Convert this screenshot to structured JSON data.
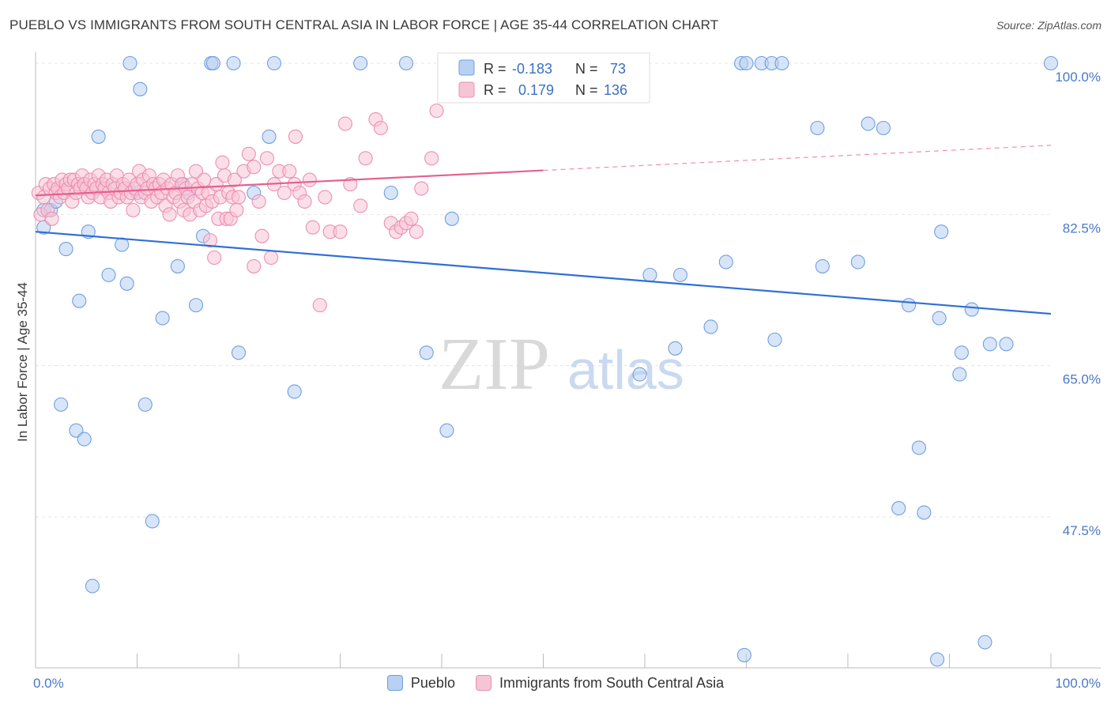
{
  "header": {
    "title": "PUEBLO VS IMMIGRANTS FROM SOUTH CENTRAL ASIA IN LABOR FORCE | AGE 35-44 CORRELATION CHART",
    "source": "Source: ZipAtlas.com"
  },
  "watermark": {
    "part1": "ZIP",
    "part2": "atlas"
  },
  "chart_data": {
    "type": "scatter",
    "title": "PUEBLO VS IMMIGRANTS FROM SOUTH CENTRAL ASIA IN LABOR FORCE | AGE 35-44 CORRELATION CHART",
    "xlabel": "",
    "ylabel": "In Labor Force | Age 35-44",
    "xlim": [
      0,
      100
    ],
    "ylim": [
      29,
      101
    ],
    "x_tick_labels": {
      "left": "0.0%",
      "right": "100.0%"
    },
    "y_ticks": [
      {
        "value": 100.0,
        "label": "100.0%"
      },
      {
        "value": 82.5,
        "label": "82.5%"
      },
      {
        "value": 65.0,
        "label": "65.0%"
      },
      {
        "value": 47.5,
        "label": "47.5%"
      }
    ],
    "grid": true,
    "legend_position": "top-center",
    "stats": [
      {
        "r_label": "R = ",
        "r": "-0.183",
        "n_label": "N = ",
        "n": "73"
      },
      {
        "r_label": "R = ",
        "r": "0.179",
        "n_label": "N = ",
        "n": "136"
      }
    ],
    "series": [
      {
        "name": "Pueblo",
        "color": "#6f9fe0",
        "fill": "#b8d0f2",
        "trend": {
          "x0": 0,
          "y0": 80.5,
          "x1": 100,
          "y1": 71.0,
          "style": "solid"
        },
        "points": [
          [
            0.8,
            83.0
          ],
          [
            0.8,
            81.0
          ],
          [
            1.5,
            83.0
          ],
          [
            2.0,
            84.0
          ],
          [
            2.5,
            60.5
          ],
          [
            3.0,
            78.5
          ],
          [
            4.0,
            57.5
          ],
          [
            4.3,
            72.5
          ],
          [
            4.8,
            56.5
          ],
          [
            5.2,
            80.5
          ],
          [
            5.6,
            39.5
          ],
          [
            6.2,
            91.5
          ],
          [
            7.2,
            75.5
          ],
          [
            8.5,
            79.0
          ],
          [
            9.0,
            74.5
          ],
          [
            9.3,
            100.0
          ],
          [
            10.0,
            85.0
          ],
          [
            10.3,
            97.0
          ],
          [
            10.8,
            60.5
          ],
          [
            11.5,
            47.0
          ],
          [
            12.5,
            70.5
          ],
          [
            14.0,
            76.5
          ],
          [
            14.5,
            86.0
          ],
          [
            15.0,
            85.0
          ],
          [
            15.8,
            72.0
          ],
          [
            16.5,
            80.0
          ],
          [
            17.3,
            100.0
          ],
          [
            17.5,
            100.0
          ],
          [
            19.5,
            100.0
          ],
          [
            20.0,
            66.5
          ],
          [
            21.5,
            85.0
          ],
          [
            23.0,
            91.5
          ],
          [
            23.5,
            100.0
          ],
          [
            25.5,
            62.0
          ],
          [
            32.0,
            100.0
          ],
          [
            35.0,
            85.0
          ],
          [
            36.5,
            100.0
          ],
          [
            38.5,
            66.5
          ],
          [
            40.5,
            57.5
          ],
          [
            41.0,
            82.0
          ],
          [
            59.5,
            64.0
          ],
          [
            60.5,
            75.5
          ],
          [
            63.0,
            67.0
          ],
          [
            63.5,
            75.5
          ],
          [
            66.5,
            69.5
          ],
          [
            68.0,
            77.0
          ],
          [
            69.5,
            100.0
          ],
          [
            69.8,
            31.5
          ],
          [
            70.0,
            100.0
          ],
          [
            71.5,
            100.0
          ],
          [
            72.5,
            100.0
          ],
          [
            72.8,
            68.0
          ],
          [
            73.5,
            100.0
          ],
          [
            77.0,
            92.5
          ],
          [
            77.5,
            76.5
          ],
          [
            81.0,
            77.0
          ],
          [
            82.0,
            93.0
          ],
          [
            83.5,
            92.5
          ],
          [
            85.0,
            48.5
          ],
          [
            86.0,
            72.0
          ],
          [
            87.0,
            55.5
          ],
          [
            87.5,
            48.0
          ],
          [
            88.8,
            31.0
          ],
          [
            89.0,
            70.5
          ],
          [
            89.2,
            80.5
          ],
          [
            91.0,
            64.0
          ],
          [
            91.2,
            66.5
          ],
          [
            92.2,
            71.5
          ],
          [
            93.5,
            33.0
          ],
          [
            94.0,
            67.5
          ],
          [
            95.6,
            67.5
          ],
          [
            100.0,
            100.0
          ]
        ]
      },
      {
        "name": "Immigrants from South Central Asia",
        "color": "#ec8fb0",
        "fill": "#f7c4d5",
        "trend": {
          "x0": 0,
          "y0": 84.7,
          "x1": 100,
          "y1": 90.5,
          "solid_until": 50,
          "style": "solid-then-dashed"
        },
        "points": [
          [
            0.3,
            85.0
          ],
          [
            0.5,
            82.5
          ],
          [
            0.8,
            84.5
          ],
          [
            1.0,
            86.0
          ],
          [
            1.2,
            83.0
          ],
          [
            1.4,
            85.5
          ],
          [
            1.6,
            82.0
          ],
          [
            1.8,
            86.0
          ],
          [
            2.0,
            85.0
          ],
          [
            2.2,
            85.5
          ],
          [
            2.4,
            84.5
          ],
          [
            2.6,
            86.5
          ],
          [
            2.8,
            85.0
          ],
          [
            3.0,
            86.0
          ],
          [
            3.2,
            85.5
          ],
          [
            3.4,
            86.5
          ],
          [
            3.6,
            84.0
          ],
          [
            3.8,
            86.5
          ],
          [
            4.0,
            85.0
          ],
          [
            4.2,
            86.0
          ],
          [
            4.4,
            85.5
          ],
          [
            4.6,
            87.0
          ],
          [
            4.8,
            86.0
          ],
          [
            5.0,
            85.5
          ],
          [
            5.2,
            84.5
          ],
          [
            5.4,
            86.5
          ],
          [
            5.6,
            85.0
          ],
          [
            5.8,
            86.0
          ],
          [
            6.0,
            85.5
          ],
          [
            6.2,
            87.0
          ],
          [
            6.4,
            84.5
          ],
          [
            6.6,
            86.0
          ],
          [
            6.8,
            85.5
          ],
          [
            7.0,
            86.5
          ],
          [
            7.2,
            85.0
          ],
          [
            7.4,
            84.0
          ],
          [
            7.6,
            86.0
          ],
          [
            7.8,
            85.5
          ],
          [
            8.0,
            87.0
          ],
          [
            8.2,
            84.5
          ],
          [
            8.4,
            85.0
          ],
          [
            8.6,
            86.0
          ],
          [
            8.8,
            85.5
          ],
          [
            9.0,
            84.5
          ],
          [
            9.2,
            86.5
          ],
          [
            9.4,
            85.0
          ],
          [
            9.6,
            83.0
          ],
          [
            9.8,
            85.5
          ],
          [
            10.0,
            86.0
          ],
          [
            10.2,
            87.5
          ],
          [
            10.4,
            84.5
          ],
          [
            10.6,
            86.5
          ],
          [
            10.8,
            85.0
          ],
          [
            11.0,
            85.5
          ],
          [
            11.2,
            87.0
          ],
          [
            11.4,
            84.0
          ],
          [
            11.6,
            86.0
          ],
          [
            11.8,
            85.5
          ],
          [
            12.0,
            84.5
          ],
          [
            12.2,
            86.0
          ],
          [
            12.4,
            85.0
          ],
          [
            12.6,
            86.5
          ],
          [
            12.8,
            83.5
          ],
          [
            13.0,
            85.5
          ],
          [
            13.2,
            82.5
          ],
          [
            13.4,
            86.0
          ],
          [
            13.6,
            84.5
          ],
          [
            13.8,
            85.0
          ],
          [
            14.0,
            87.0
          ],
          [
            14.2,
            84.0
          ],
          [
            14.4,
            86.0
          ],
          [
            14.6,
            83.0
          ],
          [
            14.8,
            85.5
          ],
          [
            15.0,
            84.5
          ],
          [
            15.2,
            82.5
          ],
          [
            15.4,
            86.0
          ],
          [
            15.6,
            84.0
          ],
          [
            15.8,
            87.5
          ],
          [
            16.0,
            85.5
          ],
          [
            16.2,
            83.0
          ],
          [
            16.4,
            85.0
          ],
          [
            16.6,
            86.5
          ],
          [
            16.8,
            83.5
          ],
          [
            17.0,
            85.0
          ],
          [
            17.2,
            79.5
          ],
          [
            17.4,
            84.0
          ],
          [
            17.6,
            77.5
          ],
          [
            17.8,
            86.0
          ],
          [
            18.0,
            82.0
          ],
          [
            18.2,
            84.5
          ],
          [
            18.4,
            88.5
          ],
          [
            18.6,
            87.0
          ],
          [
            18.8,
            82.0
          ],
          [
            19.0,
            85.0
          ],
          [
            19.2,
            82.0
          ],
          [
            19.4,
            84.5
          ],
          [
            19.6,
            86.5
          ],
          [
            19.8,
            83.0
          ],
          [
            20.0,
            84.5
          ],
          [
            20.5,
            87.5
          ],
          [
            21.0,
            89.5
          ],
          [
            21.5,
            76.5
          ],
          [
            21.5,
            88.0
          ],
          [
            22.0,
            84.0
          ],
          [
            22.3,
            80.0
          ],
          [
            22.8,
            89.0
          ],
          [
            23.2,
            77.5
          ],
          [
            23.5,
            86.0
          ],
          [
            24.0,
            87.5
          ],
          [
            24.5,
            85.0
          ],
          [
            25.0,
            87.5
          ],
          [
            25.5,
            86.0
          ],
          [
            25.6,
            91.5
          ],
          [
            26.0,
            85.0
          ],
          [
            26.5,
            84.0
          ],
          [
            27.0,
            86.5
          ],
          [
            27.3,
            81.0
          ],
          [
            28.0,
            72.0
          ],
          [
            28.5,
            84.5
          ],
          [
            29.0,
            80.5
          ],
          [
            30.0,
            80.5
          ],
          [
            30.5,
            93.0
          ],
          [
            31.0,
            86.0
          ],
          [
            32.0,
            83.5
          ],
          [
            32.5,
            89.0
          ],
          [
            33.5,
            93.5
          ],
          [
            34.0,
            92.5
          ],
          [
            35.0,
            81.5
          ],
          [
            35.5,
            80.5
          ],
          [
            36.0,
            81.0
          ],
          [
            36.5,
            81.5
          ],
          [
            37.0,
            82.0
          ],
          [
            37.5,
            80.5
          ],
          [
            38.0,
            85.5
          ],
          [
            39.0,
            89.0
          ],
          [
            39.5,
            94.5
          ]
        ]
      }
    ]
  }
}
